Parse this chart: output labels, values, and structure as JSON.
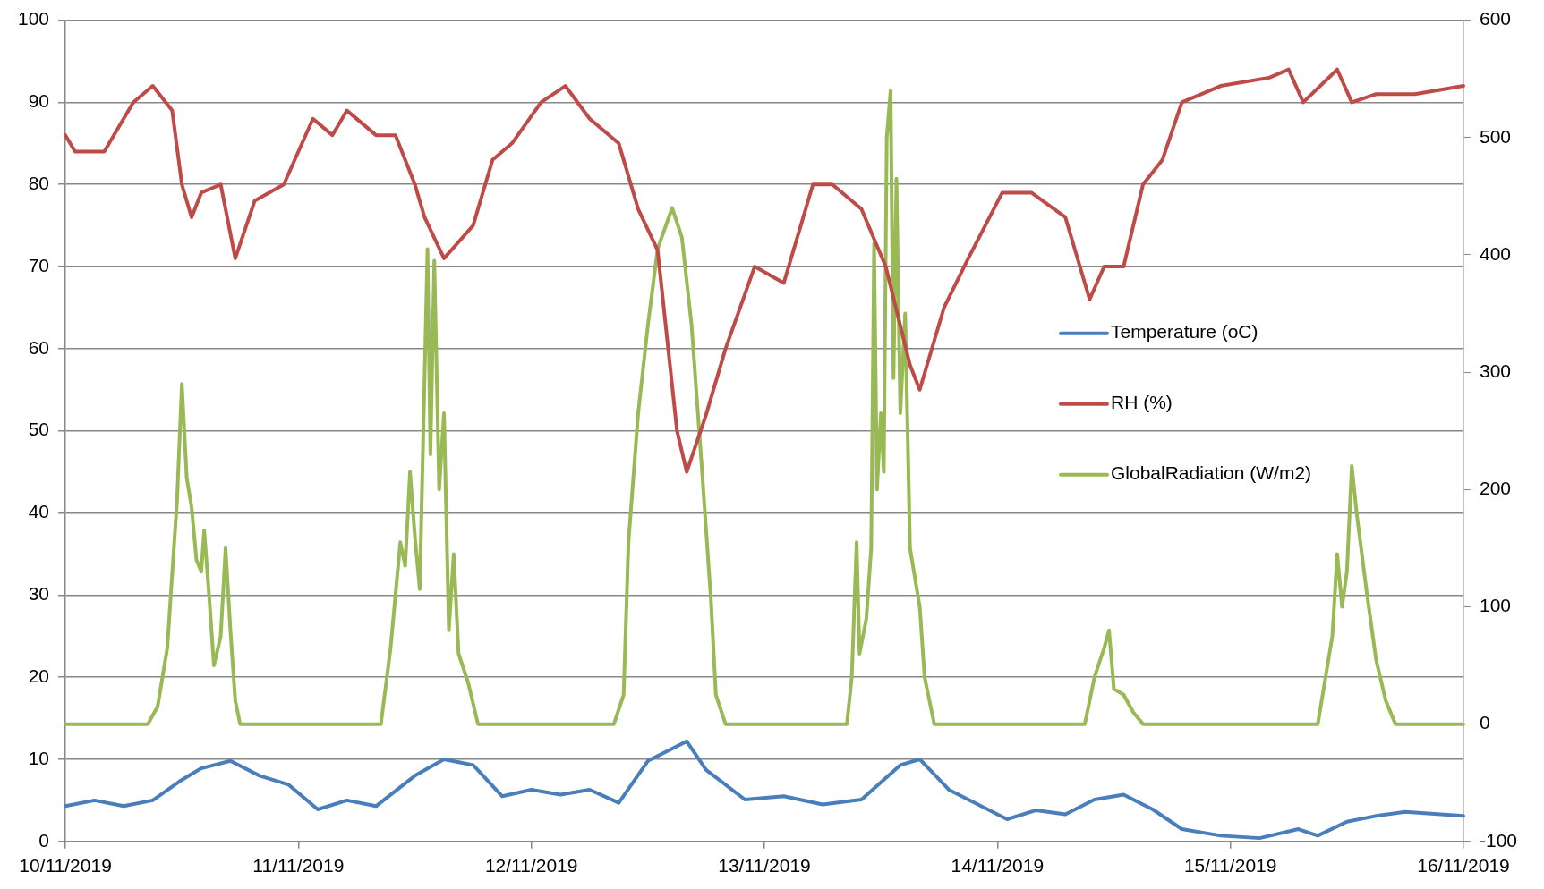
{
  "chart_data": {
    "type": "line",
    "xlim": [
      "2019-11-10",
      "2019-11-16"
    ],
    "xticks": [
      {
        "value": "2019-11-10",
        "label": "10/11/2019"
      },
      {
        "value": "2019-11-11",
        "label": "11/11/2019"
      },
      {
        "value": "2019-11-12",
        "label": "12/11/2019"
      },
      {
        "value": "2019-11-13",
        "label": "13/11/2019"
      },
      {
        "value": "2019-11-14",
        "label": "14/11/2019"
      },
      {
        "value": "2019-11-15",
        "label": "15/11/2019"
      },
      {
        "value": "2019-11-16",
        "label": "16/11/2019"
      }
    ],
    "ylim": [
      0,
      100
    ],
    "yticks": [
      0,
      10,
      20,
      30,
      40,
      50,
      60,
      70,
      80,
      90,
      100
    ],
    "y2lim": [
      -100,
      600
    ],
    "y2ticks": [
      -100,
      0,
      100,
      200,
      300,
      400,
      500,
      600
    ],
    "grid": "y",
    "legend": "right",
    "marker": "none",
    "line_style": "solid",
    "series": [
      {
        "name": "Temperature (oC)",
        "color": "#4a7ebb",
        "x": [
          "2019-11-10T00:00",
          "2019-11-10T03:00",
          "2019-11-10T06:00",
          "2019-11-10T09:00",
          "2019-11-10T12:00",
          "2019-11-10T14:00",
          "2019-11-10T17:00",
          "2019-11-10T20:00",
          "2019-11-10T23:00",
          "2019-11-11T02:00",
          "2019-11-11T05:00",
          "2019-11-11T08:00",
          "2019-11-11T12:00",
          "2019-11-11T15:00",
          "2019-11-11T18:00",
          "2019-11-11T21:00",
          "2019-11-12T00:00",
          "2019-11-12T03:00",
          "2019-11-12T06:00",
          "2019-11-12T09:00",
          "2019-11-12T12:00",
          "2019-11-12T16:00",
          "2019-11-12T18:00",
          "2019-11-12T22:00",
          "2019-11-13T02:00",
          "2019-11-13T06:00",
          "2019-11-13T10:00",
          "2019-11-13T14:00",
          "2019-11-13T16:00",
          "2019-11-13T19:00",
          "2019-11-13T22:00",
          "2019-11-14T01:00",
          "2019-11-14T04:00",
          "2019-11-14T07:00",
          "2019-11-14T10:00",
          "2019-11-14T13:00",
          "2019-11-14T16:00",
          "2019-11-14T19:00",
          "2019-11-14T23:00",
          "2019-11-15T03:00",
          "2019-11-15T07:00",
          "2019-11-15T09:00",
          "2019-11-15T12:00",
          "2019-11-15T15:00",
          "2019-11-15T18:00",
          "2019-11-16T00:00"
        ],
        "values": [
          4.3,
          5,
          4.3,
          5,
          7.5,
          8.9,
          9.8,
          8,
          6.9,
          3.9,
          5,
          4.3,
          8,
          10,
          9.3,
          5.5,
          6.3,
          5.7,
          6.3,
          4.7,
          9.8,
          12.2,
          8.7,
          5.1,
          5.5,
          4.5,
          5.1,
          9.3,
          10,
          6.3,
          4.5,
          2.7,
          3.8,
          3.3,
          5.1,
          5.7,
          3.9,
          1.5,
          0.7,
          0.4,
          1.5,
          0.7,
          2.4,
          3.1,
          3.6,
          3.1
        ]
      },
      {
        "name": "RH (%)",
        "color": "#be4b48",
        "x": [
          "2019-11-10T00:00",
          "2019-11-10T01:00",
          "2019-11-10T04:00",
          "2019-11-10T06:00",
          "2019-11-10T07:00",
          "2019-11-10T09:00",
          "2019-11-10T11:00",
          "2019-11-10T12:00",
          "2019-11-10T13:00",
          "2019-11-10T14:00",
          "2019-11-10T16:00",
          "2019-11-10T17:30",
          "2019-11-10T19:30",
          "2019-11-10T22:30",
          "2019-11-11T01:30",
          "2019-11-11T03:30",
          "2019-11-11T05:00",
          "2019-11-11T08:00",
          "2019-11-11T10:00",
          "2019-11-11T12:00",
          "2019-11-11T13:00",
          "2019-11-11T15:00",
          "2019-11-11T18:00",
          "2019-11-11T20:00",
          "2019-11-11T22:00",
          "2019-11-12T01:00",
          "2019-11-12T03:30",
          "2019-11-12T06:00",
          "2019-11-12T09:00",
          "2019-11-12T11:00",
          "2019-11-12T13:00",
          "2019-11-12T15:00",
          "2019-11-12T16:00",
          "2019-11-12T18:00",
          "2019-11-12T20:00",
          "2019-11-12T23:00",
          "2019-11-13T02:00",
          "2019-11-13T05:00",
          "2019-11-13T07:00",
          "2019-11-13T10:00",
          "2019-11-13T12:30",
          "2019-11-13T15:00",
          "2019-11-13T16:00",
          "2019-11-13T18:30",
          "2019-11-13T21:00",
          "2019-11-14T00:30",
          "2019-11-14T03:30",
          "2019-11-14T07:00",
          "2019-11-14T09:30",
          "2019-11-14T11:00",
          "2019-11-14T13:00",
          "2019-11-14T15:00",
          "2019-11-14T17:00",
          "2019-11-14T19:00",
          "2019-11-14T23:00",
          "2019-11-15T04:00",
          "2019-11-15T06:00",
          "2019-11-15T07:30",
          "2019-11-15T11:00",
          "2019-11-15T12:30",
          "2019-11-15T15:00",
          "2019-11-15T19:00",
          "2019-11-16T00:00"
        ],
        "values": [
          86,
          84,
          84,
          88,
          90,
          92,
          89,
          80,
          76,
          79,
          80,
          71,
          78,
          80,
          88,
          86,
          89,
          86,
          86,
          80,
          76,
          71,
          75,
          83,
          85,
          90,
          92,
          88,
          85,
          77,
          72,
          50,
          45,
          52,
          60,
          70,
          68,
          80,
          80,
          77,
          70,
          58,
          55,
          65,
          71,
          79,
          79,
          76,
          66,
          70,
          70,
          80,
          83,
          90,
          92,
          93,
          94,
          90,
          94,
          90,
          91,
          91,
          92
        ]
      },
      {
        "name": "GlobalRadiation (W/m2)",
        "color": "#98b954",
        "axis": "y2",
        "x": [
          "2019-11-10T00:00",
          "2019-11-10T08:30",
          "2019-11-10T09:30",
          "2019-11-10T10:30",
          "2019-11-10T11:30",
          "2019-11-10T12:00",
          "2019-11-10T12:30",
          "2019-11-10T13:00",
          "2019-11-10T13:30",
          "2019-11-10T14:00",
          "2019-11-10T14:18",
          "2019-11-10T14:48",
          "2019-11-10T15:18",
          "2019-11-10T16:00",
          "2019-11-10T16:30",
          "2019-11-10T17:00",
          "2019-11-10T17:30",
          "2019-11-10T18:00",
          "2019-11-11T08:30",
          "2019-11-11T09:30",
          "2019-11-11T10:30",
          "2019-11-11T11:00",
          "2019-11-11T11:30",
          "2019-11-11T12:00",
          "2019-11-11T12:30",
          "2019-11-11T13:18",
          "2019-11-11T13:36",
          "2019-11-11T14:00",
          "2019-11-11T14:30",
          "2019-11-11T15:00",
          "2019-11-11T15:30",
          "2019-11-11T16:00",
          "2019-11-11T16:30",
          "2019-11-11T17:30",
          "2019-11-11T18:30",
          "2019-11-12T08:30",
          "2019-11-12T09:30",
          "2019-11-12T10:00",
          "2019-11-12T11:00",
          "2019-11-12T12:00",
          "2019-11-12T13:00",
          "2019-11-12T14:30",
          "2019-11-12T15:30",
          "2019-11-12T16:30",
          "2019-11-12T17:30",
          "2019-11-12T18:30",
          "2019-11-12T19:00",
          "2019-11-12T20:00",
          "2019-11-13T08:30",
          "2019-11-13T09:00",
          "2019-11-13T09:30",
          "2019-11-13T09:48",
          "2019-11-13T10:30",
          "2019-11-13T11:00",
          "2019-11-13T11:18",
          "2019-11-13T11:36",
          "2019-11-13T12:00",
          "2019-11-13T12:18",
          "2019-11-13T12:36",
          "2019-11-13T13:00",
          "2019-11-13T13:18",
          "2019-11-13T13:36",
          "2019-11-13T14:00",
          "2019-11-13T14:30",
          "2019-11-13T15:00",
          "2019-11-13T16:00",
          "2019-11-13T16:30",
          "2019-11-13T17:30",
          "2019-11-14T09:00",
          "2019-11-14T10:00",
          "2019-11-14T11:00",
          "2019-11-14T11:30",
          "2019-11-14T12:00",
          "2019-11-14T13:00",
          "2019-11-14T14:00",
          "2019-11-14T15:00",
          "2019-11-15T09:00",
          "2019-11-15T10:30",
          "2019-11-15T11:00",
          "2019-11-15T11:30",
          "2019-11-15T12:00",
          "2019-11-15T12:30",
          "2019-11-15T13:00",
          "2019-11-15T14:00",
          "2019-11-15T15:00",
          "2019-11-15T16:00",
          "2019-11-15T17:00",
          "2019-11-16T00:00"
        ],
        "values": [
          0,
          0,
          15,
          65,
          190,
          290,
          210,
          185,
          140,
          130,
          165,
          110,
          50,
          75,
          150,
          80,
          20,
          0,
          0,
          65,
          155,
          135,
          215,
          160,
          115,
          405,
          230,
          395,
          200,
          265,
          80,
          145,
          60,
          35,
          0,
          0,
          25,
          155,
          265,
          340,
          405,
          440,
          415,
          340,
          225,
          105,
          25,
          0,
          0,
          40,
          155,
          60,
          90,
          150,
          410,
          200,
          265,
          215,
          500,
          540,
          295,
          465,
          265,
          350,
          150,
          100,
          40,
          0,
          0,
          40,
          65,
          80,
          30,
          25,
          10,
          0,
          0,
          75,
          145,
          100,
          130,
          220,
          180,
          115,
          55,
          20,
          0,
          0
        ]
      }
    ]
  }
}
